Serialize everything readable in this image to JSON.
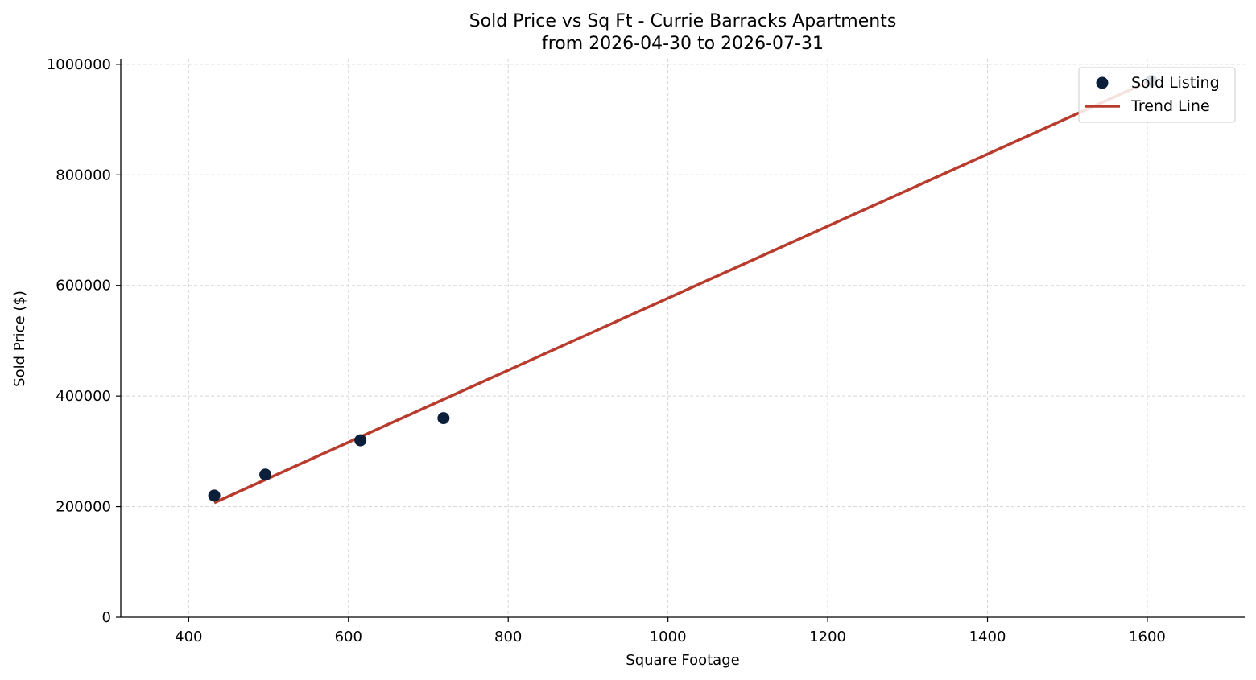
{
  "chart_data": {
    "type": "scatter",
    "title": "Sold Price vs Sq Ft - Currie Barracks Apartments",
    "subtitle": "from 2026-04-30 to 2026-07-31",
    "xlabel": "Square Footage",
    "ylabel": "Sold Price ($)",
    "xlim": [
      315,
      1722
    ],
    "ylim": [
      0,
      1010000
    ],
    "xticks": [
      400,
      600,
      800,
      1000,
      1200,
      1400,
      1600
    ],
    "yticks": [
      0,
      200000,
      400000,
      600000,
      800000,
      1000000
    ],
    "xtick_labels": [
      "400",
      "600",
      "800",
      "1000",
      "1200",
      "1400",
      "1600"
    ],
    "ytick_labels": [
      "0",
      "200000",
      "400000",
      "600000",
      "800000",
      "1000000"
    ],
    "grid": true,
    "legend_position": "top-right",
    "series": [
      {
        "name": "Sold Listing",
        "kind": "scatter",
        "color": "#0b1f3a",
        "points": [
          {
            "x": 432,
            "y": 220000
          },
          {
            "x": 496,
            "y": 258000
          },
          {
            "x": 615,
            "y": 320000
          },
          {
            "x": 719,
            "y": 360000
          },
          {
            "x": 1605,
            "y": 970000
          }
        ]
      },
      {
        "name": "Trend Line",
        "kind": "line",
        "color": "#b83c2d",
        "points": [
          {
            "x": 432,
            "y": 207000
          },
          {
            "x": 1605,
            "y": 971000
          }
        ]
      }
    ]
  }
}
